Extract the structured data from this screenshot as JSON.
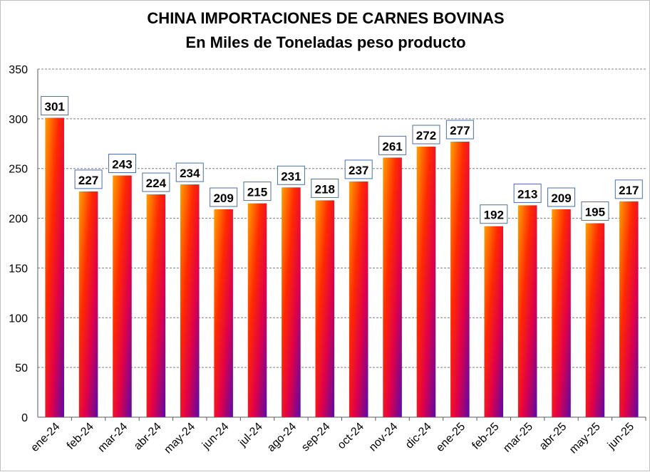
{
  "chart_data": {
    "type": "bar",
    "title": [
      "CHINA IMPORTACIONES DE CARNES BOVINAS",
      "En Miles de Toneladas peso producto"
    ],
    "categories": [
      "ene-24",
      "feb-24",
      "mar-24",
      "abr-24",
      "may-24",
      "jun-24",
      "jul-24",
      "ago-24",
      "sep-24",
      "oct-24",
      "nov-24",
      "dic-24",
      "ene-25",
      "feb-25",
      "mar-25",
      "abr-25",
      "may-25",
      "jun-25"
    ],
    "values": [
      301,
      227,
      243,
      224,
      234,
      209,
      215,
      231,
      218,
      237,
      261,
      272,
      277,
      192,
      213,
      209,
      195,
      217
    ],
    "ylim": [
      0,
      350
    ],
    "yticks": [
      0,
      50,
      100,
      150,
      200,
      250,
      300,
      350
    ],
    "grid": "horizontal dashed",
    "colors": {
      "bar_top": "#ff9a00",
      "bar_mid": "#ff1a00",
      "bar_bottom": "#6a0aa0",
      "label_border": "#4a6fa5"
    }
  }
}
